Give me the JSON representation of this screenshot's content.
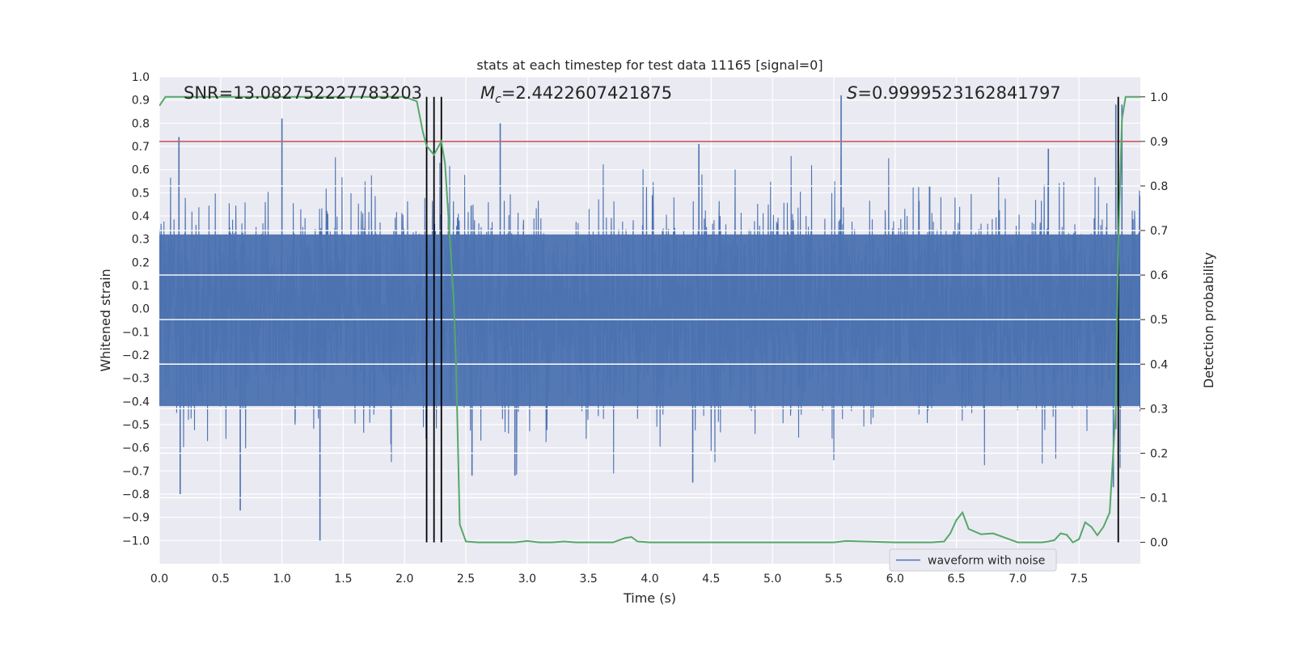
{
  "chart_data": {
    "type": "line",
    "title": "stats at each timestep for test data 11165 [signal=0]",
    "xlabel": "Time (s)",
    "ylabel": "Whitened strain",
    "y2label": "Detection probability",
    "xlim": [
      0,
      8.0
    ],
    "ylim": [
      -1.1,
      1.0
    ],
    "y2lim": [
      -0.048,
      1.045
    ],
    "xticks": [
      "0.0",
      "0.5",
      "1.0",
      "1.5",
      "2.0",
      "2.5",
      "3.0",
      "3.5",
      "4.0",
      "4.5",
      "5.0",
      "5.5",
      "6.0",
      "6.5",
      "7.0",
      "7.5"
    ],
    "yticks": [
      "1.0",
      "0.9",
      "0.8",
      "0.7",
      "0.6",
      "0.5",
      "0.4",
      "0.3",
      "0.2",
      "0.1",
      "0.0",
      "−0.1",
      "−0.2",
      "−0.3",
      "−0.4",
      "−0.5",
      "−0.6",
      "−0.7",
      "−0.8",
      "−0.9",
      "−1.0"
    ],
    "y2ticks": [
      "1.0",
      "0.9",
      "0.8",
      "0.7",
      "0.6",
      "0.5",
      "0.4",
      "0.3",
      "0.2",
      "0.1",
      "0.0"
    ],
    "annotations": {
      "snr": "SNR=13.082752227783203",
      "mc_symbol": "M",
      "mc_sub": "c",
      "mc_value": "=2.4422607421875",
      "s_symbol": "S",
      "s_value": "=0.9999523162841797"
    },
    "threshold_line": {
      "axis": "y2",
      "value": 0.9,
      "color": "#c44e52"
    },
    "vertical_markers": {
      "x": [
        2.18,
        2.24,
        2.3,
        7.82
      ],
      "y2_range": [
        0.0,
        1.0
      ],
      "color": "#000000"
    },
    "series": [
      {
        "name": "waveform with noise",
        "axis": "y",
        "color": "#4c72b0",
        "kind": "noise",
        "sigma": 0.22,
        "x_range": [
          0,
          8.0
        ],
        "samples": 3400,
        "peaks": [
          {
            "x": 0.16,
            "y": 0.74
          },
          {
            "x": 1.0,
            "y": 0.82
          },
          {
            "x": 1.31,
            "y": -1.0
          },
          {
            "x": 0.17,
            "y": -0.8
          },
          {
            "x": 0.66,
            "y": -0.87
          },
          {
            "x": 2.78,
            "y": 0.8
          },
          {
            "x": 4.4,
            "y": 0.71
          },
          {
            "x": 4.35,
            "y": -0.75
          },
          {
            "x": 5.56,
            "y": 0.92
          },
          {
            "x": 7.8,
            "y": 0.88
          },
          {
            "x": 7.85,
            "y": 0.88
          },
          {
            "x": 7.78,
            "y": -0.77
          },
          {
            "x": 2.55,
            "y": -0.72
          },
          {
            "x": 2.9,
            "y": -0.72
          },
          {
            "x": 7.25,
            "y": 0.69
          }
        ]
      },
      {
        "name": "detection probability",
        "axis": "y2",
        "color": "#55a868",
        "x": [
          0.0,
          0.05,
          0.1,
          0.15,
          0.2,
          0.3,
          0.5,
          0.8,
          1.0,
          1.5,
          2.0,
          2.1,
          2.15,
          2.18,
          2.24,
          2.3,
          2.33,
          2.36,
          2.4,
          2.42,
          2.45,
          2.5,
          2.6,
          2.8,
          2.9,
          3.0,
          3.1,
          3.2,
          3.3,
          3.4,
          3.6,
          3.7,
          3.8,
          3.85,
          3.9,
          4.0,
          4.5,
          5.0,
          5.5,
          5.6,
          6.0,
          6.3,
          6.4,
          6.45,
          6.5,
          6.55,
          6.6,
          6.7,
          6.8,
          6.9,
          7.0,
          7.2,
          7.25,
          7.3,
          7.35,
          7.4,
          7.45,
          7.5,
          7.55,
          7.6,
          7.65,
          7.7,
          7.75,
          7.8,
          7.82,
          7.85,
          7.88,
          7.9,
          7.95,
          8.0
        ],
        "y": [
          0.98,
          1.0,
          1.0,
          1.0,
          1.0,
          1.0,
          1.0,
          1.0,
          1.0,
          1.0,
          1.0,
          0.99,
          0.92,
          0.89,
          0.87,
          0.9,
          0.85,
          0.72,
          0.55,
          0.4,
          0.04,
          0.002,
          0.0,
          0.0,
          0.0,
          0.003,
          0.0,
          0.0,
          0.002,
          0.0,
          0.0,
          0.0,
          0.01,
          0.012,
          0.002,
          0.0,
          0.0,
          0.0,
          0.0,
          0.003,
          0.0,
          0.0,
          0.002,
          0.02,
          0.05,
          0.067,
          0.03,
          0.018,
          0.02,
          0.01,
          0.0,
          0.0,
          0.002,
          0.005,
          0.02,
          0.017,
          0.0,
          0.007,
          0.045,
          0.035,
          0.016,
          0.035,
          0.067,
          0.3,
          0.67,
          0.95,
          1.0,
          1.0,
          1.0,
          1.0
        ]
      }
    ],
    "legend": {
      "position": "lower-right",
      "entries": [
        "waveform with noise"
      ]
    }
  }
}
